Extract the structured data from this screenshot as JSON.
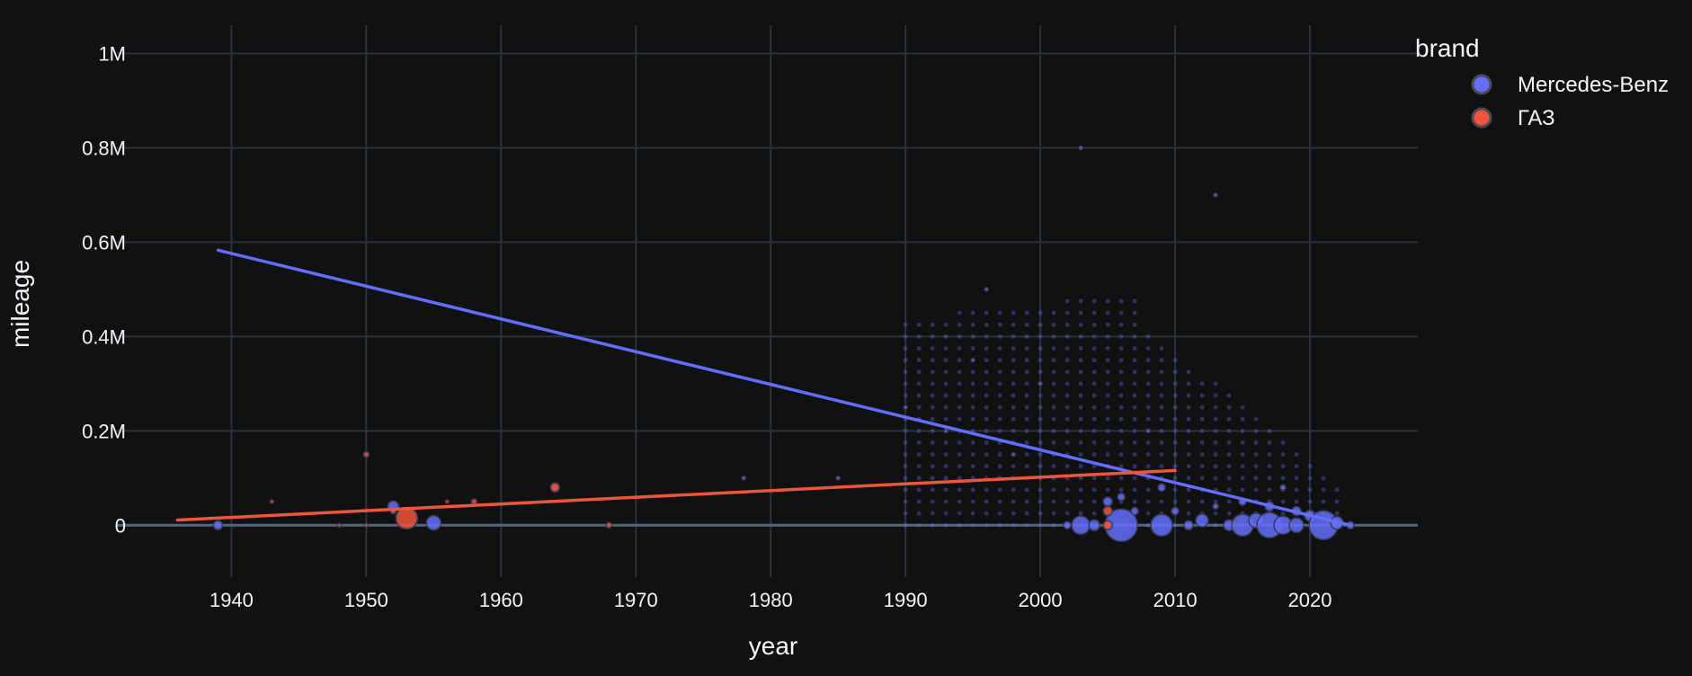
{
  "chart_data": {
    "type": "scatter",
    "xlabel": "year",
    "ylabel": "mileage",
    "xlim": [
      1931.5,
      2028
    ],
    "ylim": [
      -110000,
      1060000
    ],
    "x_ticks": [
      {
        "value": 1940,
        "label": "1940"
      },
      {
        "value": 1950,
        "label": "1950"
      },
      {
        "value": 1960,
        "label": "1960"
      },
      {
        "value": 1970,
        "label": "1970"
      },
      {
        "value": 1980,
        "label": "1980"
      },
      {
        "value": 1990,
        "label": "1990"
      },
      {
        "value": 2000,
        "label": "2000"
      },
      {
        "value": 2010,
        "label": "2010"
      },
      {
        "value": 2020,
        "label": "2020"
      }
    ],
    "y_ticks": [
      {
        "value": 0,
        "label": "0"
      },
      {
        "value": 200000,
        "label": "0.2M"
      },
      {
        "value": 400000,
        "label": "0.4M"
      },
      {
        "value": 600000,
        "label": "0.6M"
      },
      {
        "value": 800000,
        "label": "0.8M"
      },
      {
        "value": 1000000,
        "label": "1M"
      }
    ],
    "grid": true,
    "legend": {
      "title": "brand",
      "placement": "top-right"
    },
    "series": [
      {
        "name": "Mercedes-Benz",
        "color": "#636efa",
        "trendline": [
          [
            1939,
            583000
          ],
          [
            2023,
            0
          ]
        ],
        "points": [
          [
            1939,
            0,
            5
          ],
          [
            1952,
            40000,
            6
          ],
          [
            1955,
            5000,
            8
          ],
          [
            1964,
            80000,
            3
          ],
          [
            1978,
            100000,
            2
          ],
          [
            1985,
            100000,
            2
          ],
          [
            1990,
            250000,
            2
          ],
          [
            1993,
            200000,
            2
          ],
          [
            1995,
            350000,
            2
          ],
          [
            1998,
            150000,
            2
          ],
          [
            2000,
            300000,
            2
          ],
          [
            2002,
            0,
            4
          ],
          [
            2003,
            0,
            10
          ],
          [
            2004,
            0,
            6
          ],
          [
            2005,
            50000,
            5
          ],
          [
            2006,
            0,
            18
          ],
          [
            2006,
            60000,
            4
          ],
          [
            2007,
            30000,
            4
          ],
          [
            2008,
            200000,
            2
          ],
          [
            2009,
            0,
            12
          ],
          [
            2009,
            80000,
            4
          ],
          [
            2010,
            30000,
            4
          ],
          [
            2011,
            0,
            5
          ],
          [
            2012,
            10000,
            7
          ],
          [
            2013,
            40000,
            3
          ],
          [
            2014,
            0,
            6
          ],
          [
            2015,
            0,
            12
          ],
          [
            2015,
            50000,
            4
          ],
          [
            2016,
            10000,
            8
          ],
          [
            2017,
            0,
            14
          ],
          [
            2017,
            40000,
            5
          ],
          [
            2018,
            0,
            10
          ],
          [
            2018,
            80000,
            3
          ],
          [
            2019,
            0,
            8
          ],
          [
            2019,
            30000,
            5
          ],
          [
            2020,
            20000,
            6
          ],
          [
            2021,
            0,
            16
          ],
          [
            2022,
            5000,
            7
          ],
          [
            2023,
            0,
            4
          ],
          [
            2013,
            700000,
            2
          ],
          [
            2003,
            800000,
            2
          ],
          [
            1996,
            500000,
            2
          ]
        ]
      },
      {
        "name": "ГАЗ",
        "color": "#ef553b",
        "trendline": [
          [
            1936,
            11000
          ],
          [
            2010,
            116000
          ]
        ],
        "points": [
          [
            1943,
            50000,
            2
          ],
          [
            1948,
            0,
            2
          ],
          [
            1950,
            150000,
            3
          ],
          [
            1950,
            0,
            2
          ],
          [
            1952,
            30000,
            3
          ],
          [
            1953,
            15000,
            12
          ],
          [
            1956,
            50000,
            2
          ],
          [
            1958,
            50000,
            3
          ],
          [
            1964,
            80000,
            5
          ],
          [
            1968,
            0,
            3
          ],
          [
            2005,
            0,
            5
          ],
          [
            2005,
            30000,
            5
          ]
        ]
      }
    ]
  }
}
